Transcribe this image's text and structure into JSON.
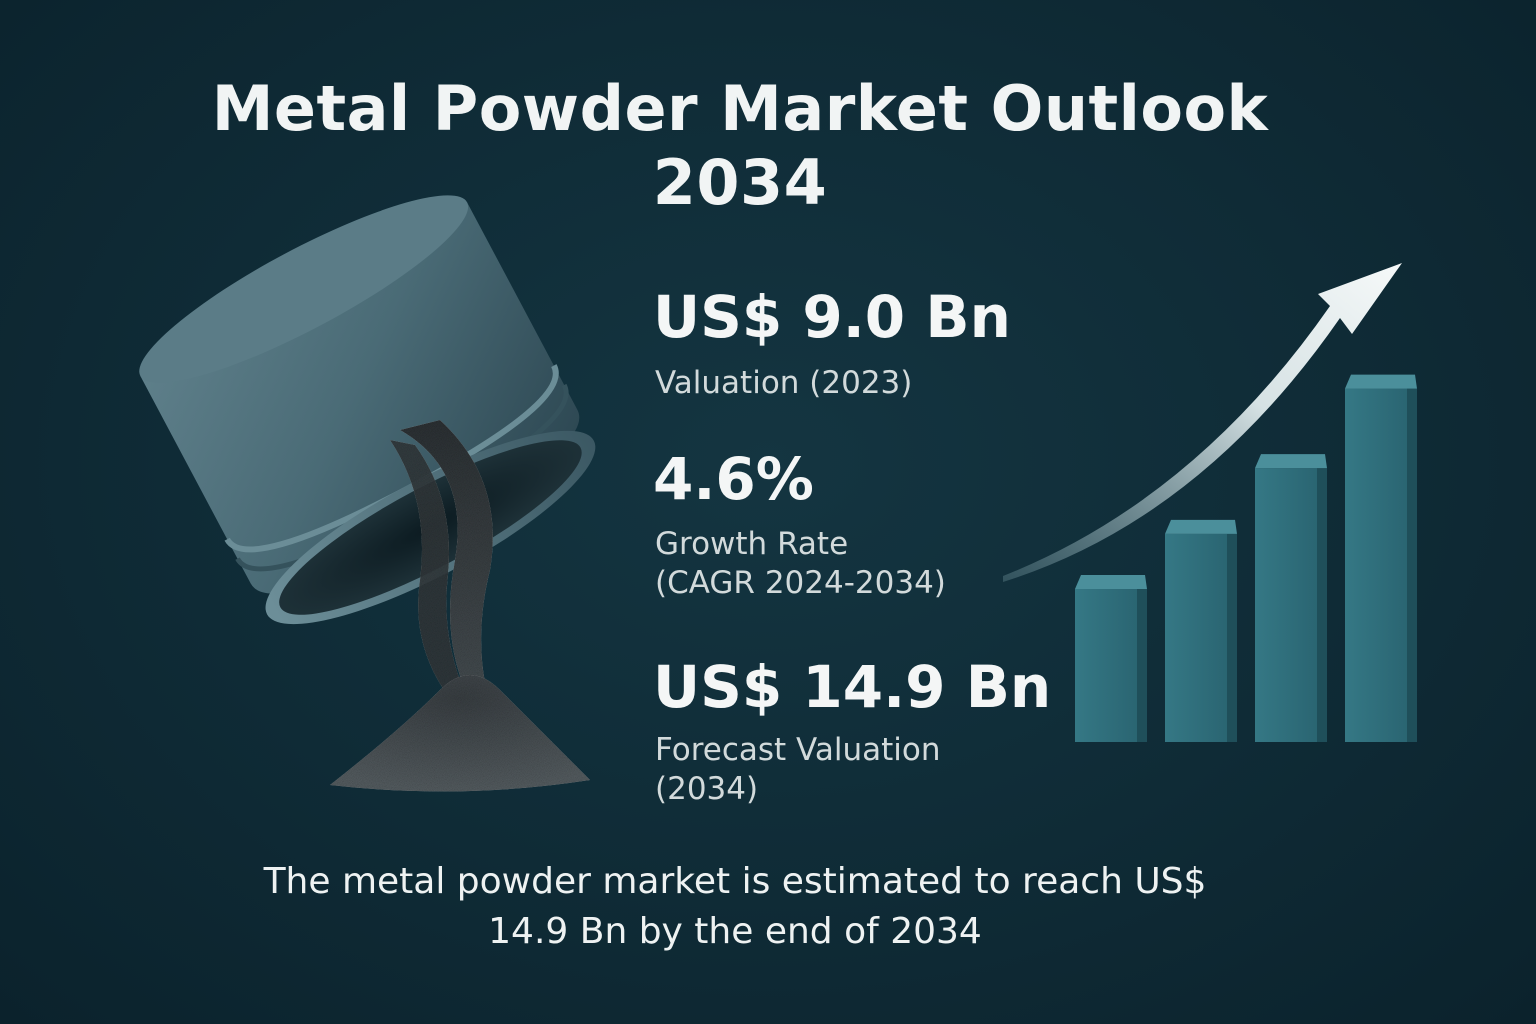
{
  "title": {
    "line1": "Metal Powder Market Outlook",
    "line2": "2034"
  },
  "stats": [
    {
      "value": "US$ 9.0 Bn",
      "label_lines": [
        "Valuation (2023)"
      ]
    },
    {
      "value": "4.6%",
      "label_lines": [
        "Growth Rate",
        "(CAGR 2024-2034)"
      ]
    },
    {
      "value": "US$ 14.9 Bn",
      "label_lines": [
        "Forecast Valuation",
        "(2034)"
      ]
    }
  ],
  "footer": {
    "line1": "The metal powder market is estimated to reach US$",
    "line2": "14.9 Bn by the end of 2034"
  },
  "growth_bars": {
    "values": [
      1.0,
      1.36,
      1.79,
      2.31
    ]
  },
  "colors": {
    "background": "#0f2b36",
    "bar": "#2f6d79",
    "can": "#4a6b76",
    "powder": "#3d4448",
    "text": "#eef2f2"
  },
  "icons": {
    "can": "metal-can-icon",
    "powder": "powder-pile-icon",
    "arrow": "growth-arrow-icon",
    "bars": "bar-graph-icon"
  }
}
